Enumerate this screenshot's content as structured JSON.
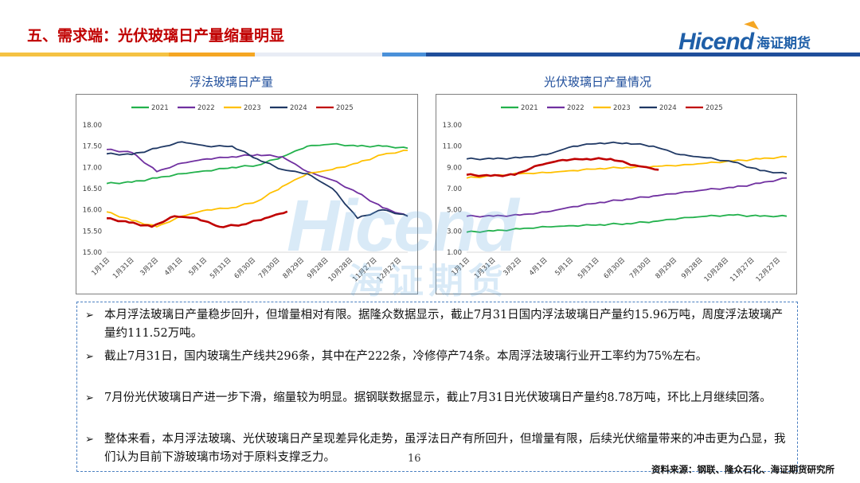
{
  "header": {
    "title": "五、需求端：光伏玻璃日产量缩量明显",
    "logo_en": "Hicend",
    "logo_cn": "海证期货",
    "band_colors": [
      "#f5c243",
      "#f5a623",
      "#e8ecf5",
      "#4a90d9",
      "#1f4e9b"
    ]
  },
  "watermark": {
    "en": "Hicend",
    "cn": "海证期货"
  },
  "charts": [
    {
      "title": "浮法玻璃日产量",
      "chart_data": {
        "type": "line",
        "x_ticks": [
          "1月1日",
          "1月31日",
          "3月2日",
          "4月1日",
          "5月1日",
          "5月31日",
          "6月30日",
          "7月30日",
          "8月29日",
          "9月28日",
          "10月28日",
          "11月27日",
          "12月27日"
        ],
        "ylim": [
          15.0,
          18.0
        ],
        "y_ticks": [
          "18.00",
          "17.50",
          "17.00",
          "16.50",
          "16.00",
          "15.50",
          "15.00"
        ],
        "series": [
          {
            "name": "2021",
            "color": "#22b14c",
            "values": [
              16.62,
              16.65,
              16.75,
              16.85,
              16.92,
              17.0,
              17.05,
              17.25,
              17.5,
              17.55,
              17.5,
              17.5,
              17.45
            ],
            "end_frac": 1.0
          },
          {
            "name": "2022",
            "color": "#7030a0",
            "values": [
              17.42,
              17.35,
              16.9,
              17.1,
              17.2,
              17.25,
              17.3,
              17.25,
              16.9,
              16.7,
              16.4,
              16.05,
              15.85
            ],
            "end_frac": 1.0
          },
          {
            "name": "2023",
            "color": "#ffc000",
            "values": [
              15.95,
              15.75,
              15.6,
              15.85,
              16.0,
              16.05,
              16.2,
              16.55,
              16.85,
              16.95,
              17.1,
              17.3,
              17.4
            ],
            "end_frac": 1.0
          },
          {
            "name": "2024",
            "color": "#1f3864",
            "values": [
              17.32,
              17.3,
              17.45,
              17.6,
              17.5,
              17.5,
              17.2,
              16.95,
              16.85,
              16.5,
              15.8,
              16.0,
              15.85
            ],
            "end_frac": 1.0
          },
          {
            "name": "2025",
            "color": "#c00000",
            "values": [
              15.8,
              15.7,
              15.6,
              15.85,
              15.8,
              15.6,
              15.65,
              15.8,
              15.96
            ],
            "end_frac": 0.6
          }
        ]
      }
    },
    {
      "title": "光伏玻璃日产量情况",
      "chart_data": {
        "type": "line",
        "x_ticks": [
          "1月1日",
          "1月31日",
          "3月2日",
          "4月1日",
          "5月1日",
          "5月31日",
          "6月30日",
          "7月30日",
          "8月29日",
          "9月28日",
          "10月28日",
          "11月27日",
          "12月27日"
        ],
        "ylim": [
          1.0,
          13.0
        ],
        "y_ticks": [
          "13.00",
          "11.00",
          "9.00",
          "7.00",
          "5.00",
          "3.00",
          "1.00"
        ],
        "series": [
          {
            "name": "2021",
            "color": "#22b14c",
            "values": [
              2.9,
              3.0,
              3.2,
              3.4,
              3.5,
              3.6,
              3.7,
              3.9,
              4.2,
              4.4,
              4.5,
              4.4,
              4.4
            ],
            "end_frac": 1.0
          },
          {
            "name": "2022",
            "color": "#7030a0",
            "values": [
              4.4,
              4.4,
              4.5,
              4.8,
              5.3,
              5.7,
              6.0,
              6.3,
              6.6,
              6.9,
              7.1,
              7.5,
              8.0
            ],
            "end_frac": 1.0
          },
          {
            "name": "2023",
            "color": "#ffc000",
            "values": [
              8.0,
              8.2,
              8.4,
              8.5,
              8.7,
              8.9,
              9.0,
              9.1,
              9.2,
              9.4,
              9.6,
              9.8,
              10.0
            ],
            "end_frac": 1.0
          },
          {
            "name": "2024",
            "color": "#1f3864",
            "values": [
              9.8,
              9.8,
              9.9,
              10.2,
              11.0,
              11.3,
              11.3,
              11.0,
              10.2,
              9.9,
              9.5,
              8.7,
              8.4
            ],
            "end_frac": 1.0
          },
          {
            "name": "2025",
            "color": "#c00000",
            "values": [
              8.3,
              8.2,
              8.3,
              9.2,
              9.7,
              9.8,
              9.8,
              9.2,
              8.78
            ],
            "end_frac": 0.6
          }
        ]
      }
    }
  ],
  "bullets": [
    "本月浮法玻璃日产量稳步回升，但增量相对有限。据隆众数据显示，截止7月31日国内浮法玻璃日产量约15.96万吨，周度浮法玻璃产量约111.52万吨。",
    "截止7月31日，国内玻璃生产线共296条，其中在产222条，冷修停产74条。本周浮法玻璃行业开工率约为75%左右。",
    "7月份光伏玻璃日产进一步下滑，缩量较为明显。据钢联数据显示，截止7月31日光伏玻璃日产量约8.78万吨，环比上月继续回落。",
    "整体来看，本月浮法玻璃、光伏玻璃日产呈现差异化走势，虽浮法日产有所回升，但增量有限，后续光伏缩量带来的冲击更为凸显，我们认为目前下游玻璃市场对于原料支撑乏力。"
  ],
  "bullet_arrow": "➢",
  "page_number": "16",
  "source": "资料来源：钢联、隆众石化、海证期货研究所"
}
